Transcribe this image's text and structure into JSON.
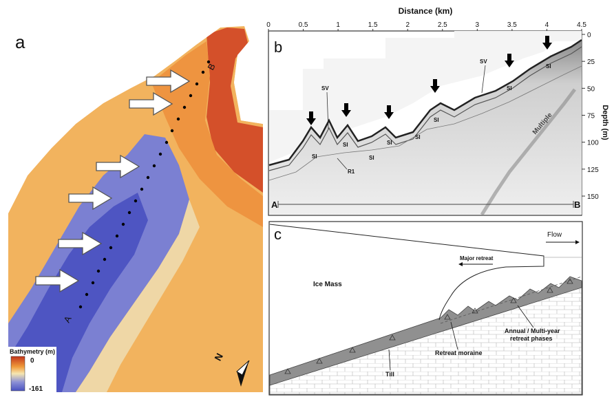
{
  "panel_a": {
    "label": "a",
    "legend_title": "Bathymetry (m)",
    "legend_max": "0",
    "legend_min": "-161",
    "profile_start": "A",
    "profile_end": "B",
    "north": "N",
    "colors": {
      "shallow": "#c2351a",
      "mid": "#f2c66a",
      "deep": "#5c62c4"
    }
  },
  "panel_b": {
    "label": "b",
    "x_axis_title": "Distance (km)",
    "x_ticks": [
      "0",
      "0.5",
      "1",
      "1.5",
      "2",
      "2.5",
      "3",
      "3.5",
      "4",
      "4.5"
    ],
    "y_axis_title": "Depth (m)",
    "y_ticks": [
      "0",
      "25",
      "50",
      "75",
      "100",
      "125",
      "150"
    ],
    "profile_start": "A",
    "profile_end": "B",
    "annotations": {
      "sv_left": "SV",
      "sv_right": "SV",
      "r1": "R1",
      "multiple": "Multiple",
      "si": "SI"
    }
  },
  "panel_c": {
    "label": "c",
    "flow": "Flow",
    "major_retreat": "Major retreat",
    "ice_mass": "Ice Mass",
    "retreat_phases": "Annual / Multi-year retreat phases",
    "retreat_phases_line1": "Annual / Multi-year",
    "retreat_phases_line2": "retreat phases",
    "retreat_moraine": "Retreat moraine",
    "till": "Till"
  }
}
